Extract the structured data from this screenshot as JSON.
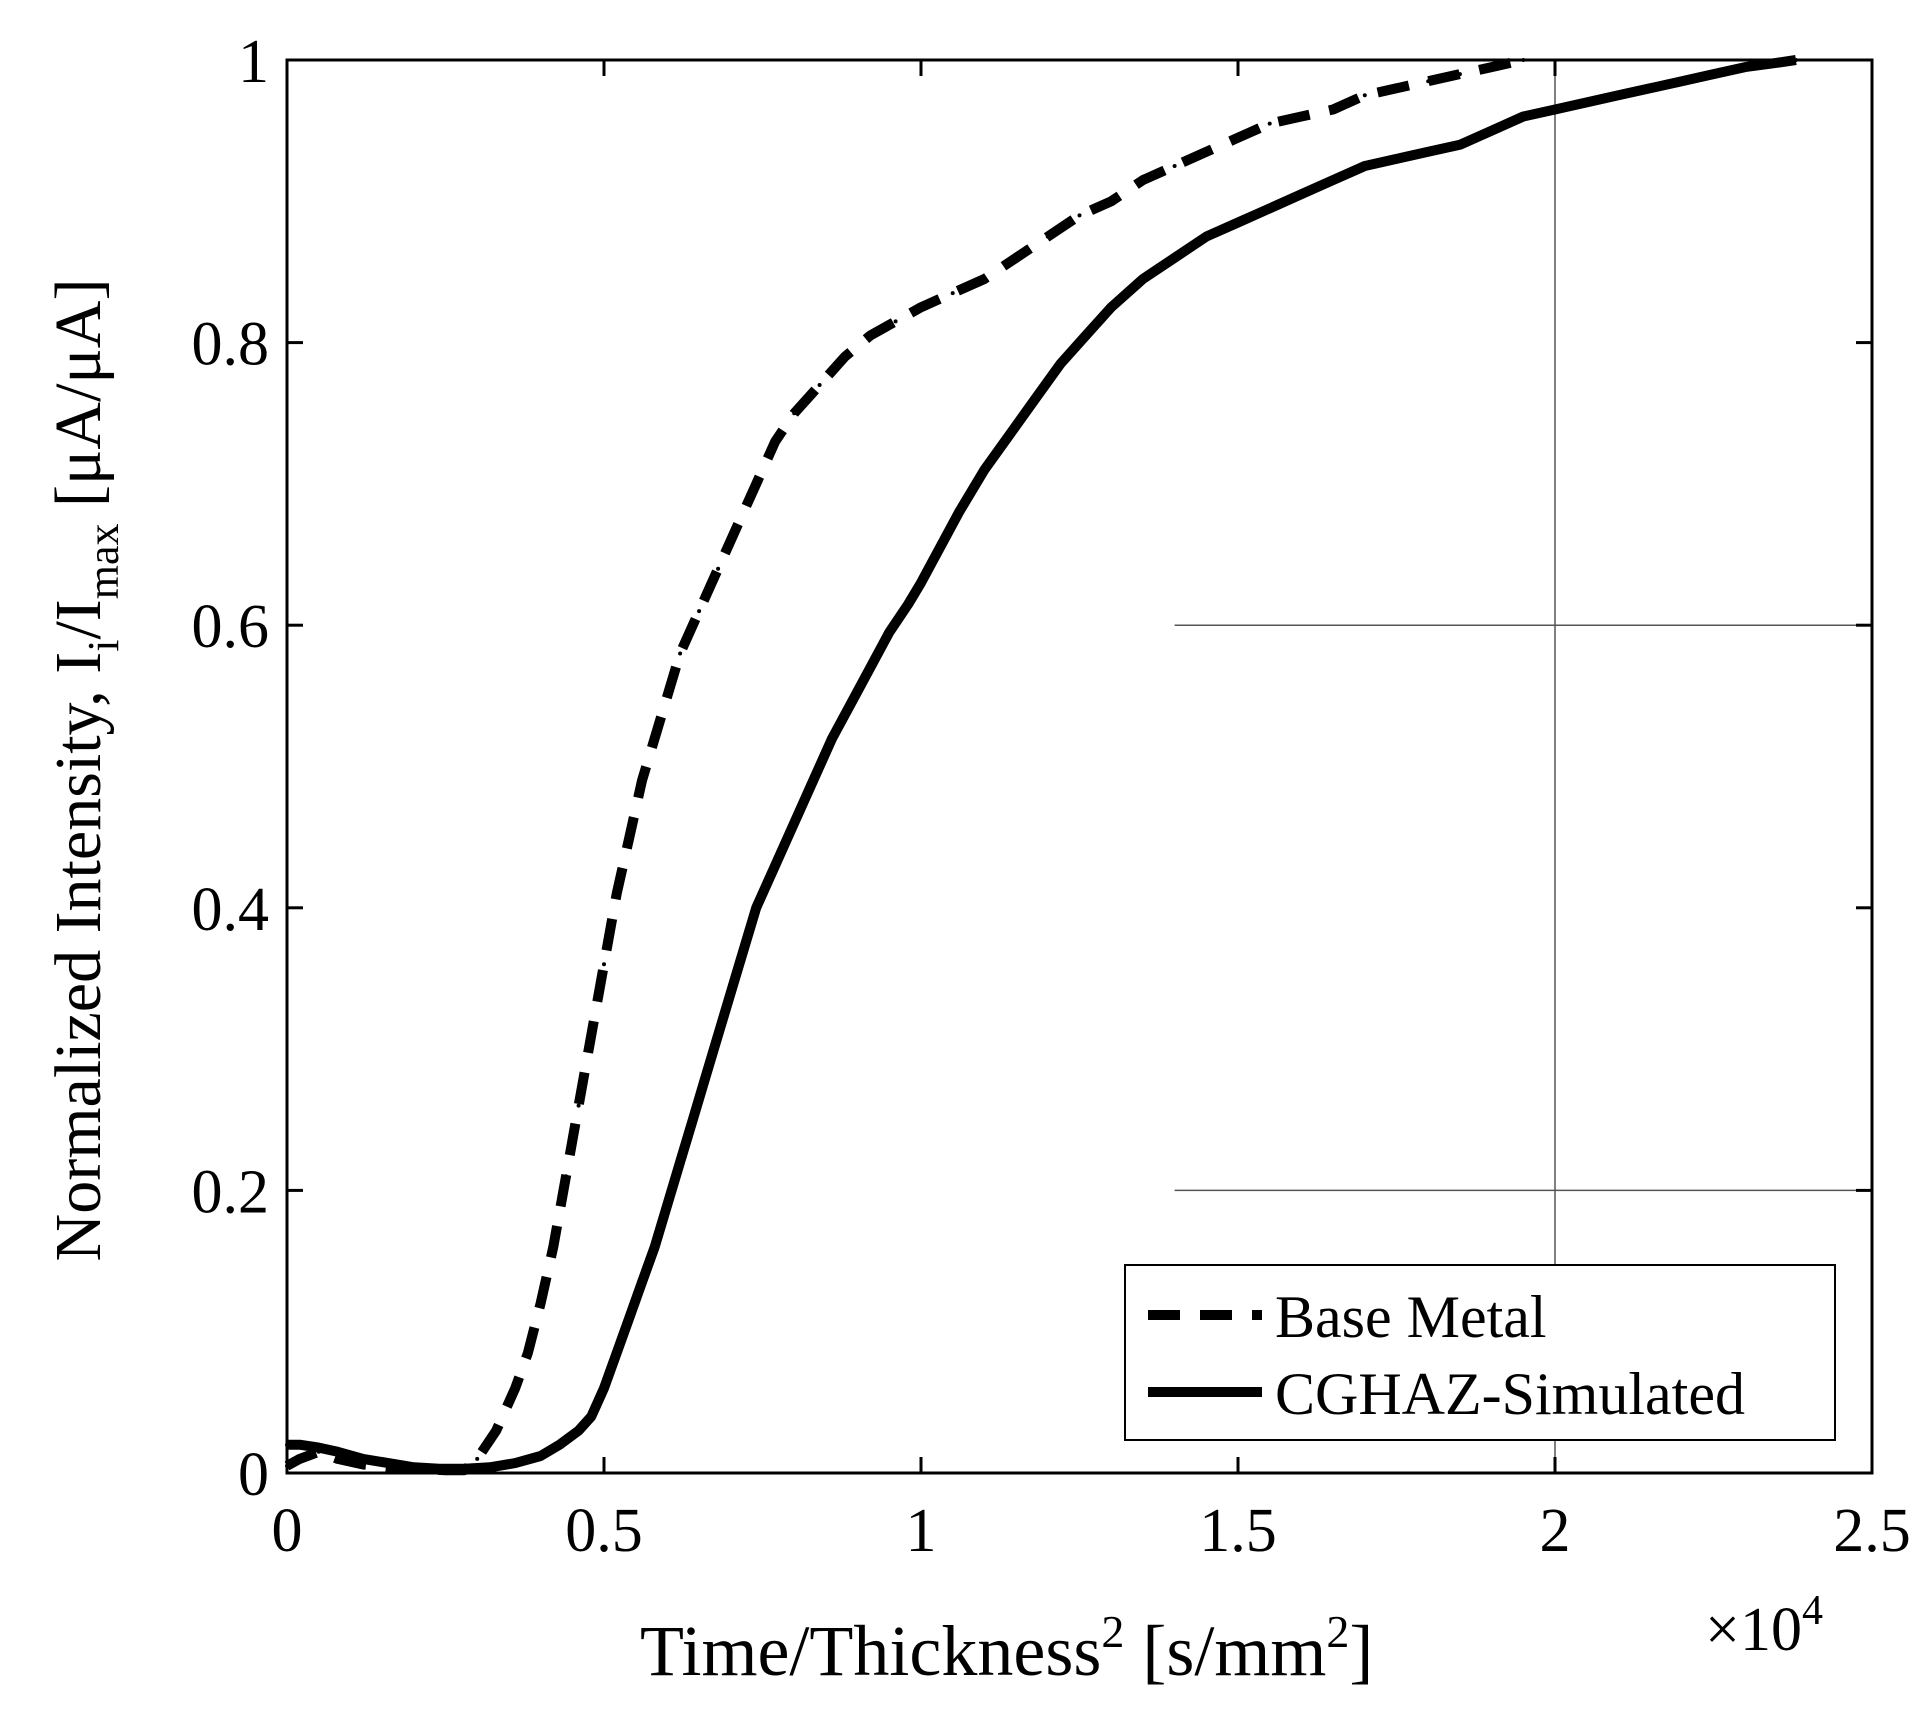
{
  "chart_data": {
    "type": "line",
    "title": "",
    "xlabel": {
      "main": "Time/Thickness",
      "main_sup": "2",
      "unit_open": " [s/mm",
      "unit_sup": "2",
      "unit_close": "]"
    },
    "ylabel": {
      "prefix": "Normalized Intensity, I",
      "sub1": "i",
      "mid": "/I",
      "sub2": "max",
      "unit": " [μA/μA]"
    },
    "x_multiplier": {
      "base": "×10",
      "exp": "4"
    },
    "xlim": [
      0,
      2.5
    ],
    "ylim": [
      0,
      1
    ],
    "xticks": [
      0,
      0.5,
      1,
      1.5,
      2,
      2.5
    ],
    "xtick_labels": [
      "0",
      "0.5",
      "1",
      "1.5",
      "2",
      "2.5"
    ],
    "yticks": [
      0,
      0.2,
      0.4,
      0.6,
      0.8,
      1
    ],
    "ytick_labels": [
      "0",
      "0.2",
      "0.4",
      "0.6",
      "0.8",
      "1"
    ],
    "legend": {
      "position": "bottom-right",
      "entries": [
        "Base Metal",
        "CGHAZ-Simulated"
      ]
    },
    "grid_lines": {
      "horizontal": [
        {
          "y": 0.6,
          "x_from": 1.4,
          "x_to": 2.5
        },
        {
          "y": 0.2,
          "x_from": 1.4,
          "x_to": 2.5
        }
      ],
      "vertical": [
        {
          "x": 2.0,
          "y_from": 0.0,
          "y_to": 1.0
        }
      ]
    },
    "series": [
      {
        "name": "Base Metal",
        "style": "dashed",
        "color": "#000000",
        "x": [
          0,
          0.02,
          0.05,
          0.08,
          0.12,
          0.16,
          0.2,
          0.25,
          0.28,
          0.3,
          0.33,
          0.36,
          0.38,
          0.4,
          0.42,
          0.44,
          0.46,
          0.48,
          0.5,
          0.52,
          0.54,
          0.56,
          0.58,
          0.6,
          0.62,
          0.65,
          0.68,
          0.71,
          0.74,
          0.77,
          0.8,
          0.84,
          0.88,
          0.92,
          0.96,
          1.0,
          1.05,
          1.1,
          1.15,
          1.2,
          1.25,
          1.3,
          1.35,
          1.4,
          1.45,
          1.5,
          1.55,
          1.6,
          1.65,
          1.7,
          1.75,
          1.8,
          1.85,
          1.9,
          1.95
        ],
        "y": [
          0.005,
          0.01,
          0.015,
          0.01,
          0.006,
          0.004,
          0.003,
          0.002,
          0.002,
          0.01,
          0.03,
          0.06,
          0.085,
          0.12,
          0.16,
          0.21,
          0.26,
          0.31,
          0.36,
          0.41,
          0.45,
          0.49,
          0.52,
          0.55,
          0.58,
          0.61,
          0.64,
          0.67,
          0.7,
          0.73,
          0.75,
          0.77,
          0.79,
          0.805,
          0.815,
          0.825,
          0.835,
          0.845,
          0.86,
          0.875,
          0.89,
          0.9,
          0.915,
          0.925,
          0.935,
          0.945,
          0.955,
          0.96,
          0.965,
          0.975,
          0.98,
          0.985,
          0.99,
          0.995,
          1.0
        ]
      },
      {
        "name": "CGHAZ-Simulated",
        "style": "solid",
        "color": "#000000",
        "x": [
          0,
          0.02,
          0.05,
          0.08,
          0.12,
          0.16,
          0.2,
          0.24,
          0.28,
          0.32,
          0.36,
          0.4,
          0.43,
          0.46,
          0.48,
          0.5,
          0.52,
          0.54,
          0.56,
          0.58,
          0.6,
          0.62,
          0.64,
          0.66,
          0.68,
          0.7,
          0.72,
          0.74,
          0.77,
          0.8,
          0.83,
          0.86,
          0.89,
          0.92,
          0.95,
          0.98,
          1.0,
          1.03,
          1.06,
          1.1,
          1.14,
          1.18,
          1.22,
          1.26,
          1.3,
          1.35,
          1.4,
          1.45,
          1.5,
          1.55,
          1.6,
          1.65,
          1.7,
          1.75,
          1.8,
          1.85,
          1.9,
          1.95,
          2.0,
          2.05,
          2.1,
          2.15,
          2.2,
          2.25,
          2.3,
          2.35,
          2.38
        ],
        "y": [
          0.02,
          0.02,
          0.018,
          0.015,
          0.01,
          0.007,
          0.004,
          0.003,
          0.003,
          0.004,
          0.007,
          0.012,
          0.02,
          0.03,
          0.04,
          0.06,
          0.085,
          0.11,
          0.135,
          0.16,
          0.19,
          0.22,
          0.25,
          0.28,
          0.31,
          0.34,
          0.37,
          0.4,
          0.43,
          0.46,
          0.49,
          0.52,
          0.545,
          0.57,
          0.595,
          0.615,
          0.63,
          0.655,
          0.68,
          0.71,
          0.735,
          0.76,
          0.785,
          0.805,
          0.825,
          0.845,
          0.86,
          0.875,
          0.885,
          0.895,
          0.905,
          0.915,
          0.925,
          0.93,
          0.935,
          0.94,
          0.95,
          0.96,
          0.965,
          0.97,
          0.975,
          0.98,
          0.985,
          0.99,
          0.995,
          0.998,
          1.0
        ]
      }
    ]
  }
}
